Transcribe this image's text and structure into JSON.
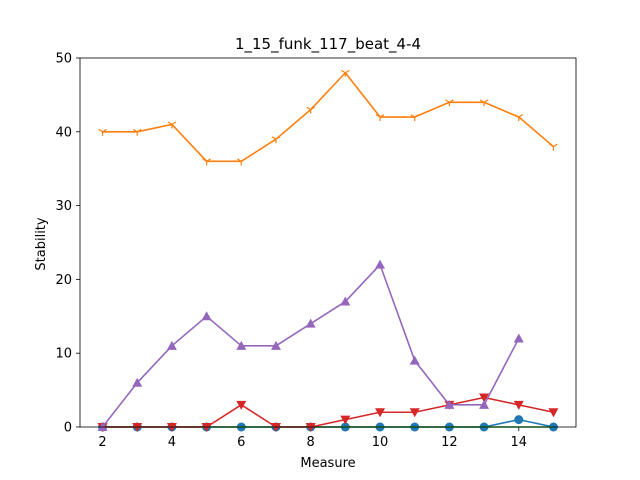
{
  "chart_data": {
    "type": "line",
    "title": "1_15_funk_117_beat_4-4",
    "xlabel": "Measure",
    "ylabel": "Stability",
    "xlim": [
      1.35,
      15.65
    ],
    "ylim": [
      0,
      50
    ],
    "xticks": [
      2,
      4,
      6,
      8,
      10,
      12,
      14
    ],
    "yticks": [
      0,
      10,
      20,
      30,
      40,
      50
    ],
    "grid": false,
    "series": [
      {
        "color": "#1f77b4",
        "marker": "circle",
        "x": [
          2,
          3,
          4,
          5,
          6,
          7,
          8,
          9,
          10,
          11,
          12,
          13,
          14,
          15
        ],
        "y": [
          0,
          0,
          0,
          0,
          0,
          0,
          0,
          0,
          0,
          0,
          0,
          0,
          1,
          0
        ]
      },
      {
        "color": "#ff7f0e",
        "marker": "tri-down",
        "x": [
          2,
          3,
          4,
          5,
          6,
          7,
          8,
          9,
          10,
          11,
          12,
          13,
          14,
          15
        ],
        "y": [
          40,
          40,
          41,
          36,
          36,
          39,
          43,
          48,
          42,
          42,
          44,
          44,
          42,
          38
        ]
      },
      {
        "color": "#2ca02c",
        "marker": "none",
        "x": [
          2,
          3,
          4,
          5,
          6,
          7,
          8,
          9,
          10,
          11,
          12,
          13,
          14,
          15
        ],
        "y": [
          0,
          0,
          0,
          0,
          0,
          0,
          0,
          0,
          0,
          0,
          0,
          0,
          0,
          0
        ]
      },
      {
        "color": "#d62728",
        "marker": "triangle-down",
        "x": [
          2,
          3,
          4,
          5,
          6,
          7,
          8,
          9,
          10,
          11,
          12,
          13,
          14,
          15
        ],
        "y": [
          0,
          0,
          0,
          0,
          3,
          0,
          0,
          1,
          2,
          2,
          3,
          4,
          3,
          2
        ]
      },
      {
        "color": "#9467bd",
        "marker": "triangle-up",
        "x": [
          2,
          3,
          4,
          5,
          6,
          7,
          8,
          9,
          10,
          11,
          12,
          13,
          14
        ],
        "y": [
          0,
          6,
          11,
          15,
          11,
          11,
          14,
          17,
          22,
          9,
          3,
          3,
          12
        ]
      }
    ]
  }
}
